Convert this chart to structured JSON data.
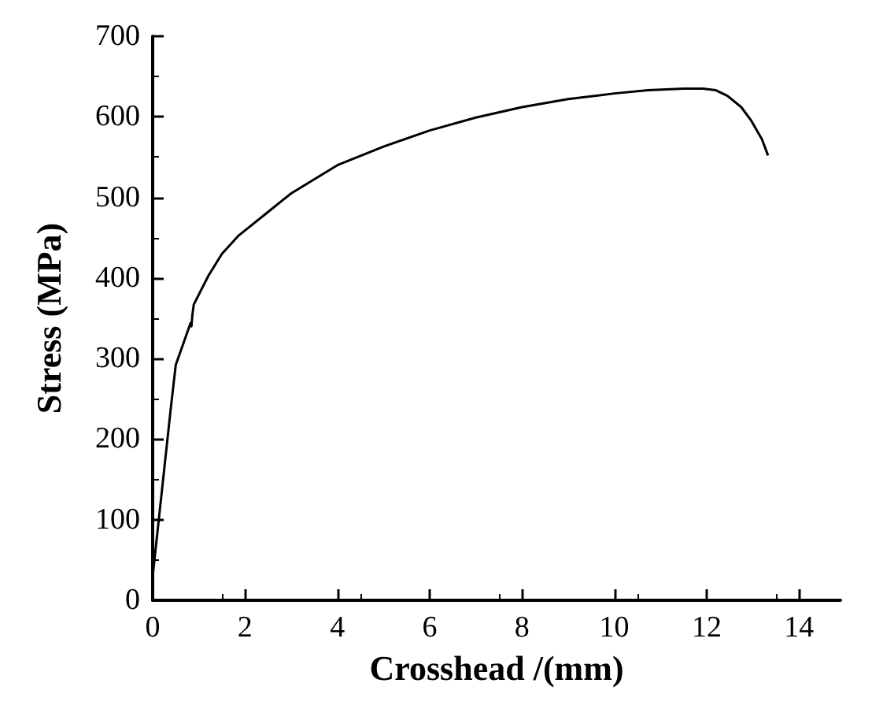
{
  "chart_data": {
    "type": "line",
    "xlabel": "Crosshead /(mm)",
    "ylabel": "Stress (MPa)",
    "xlim": [
      0,
      14.9
    ],
    "xticks": [
      0,
      2,
      4,
      6,
      8,
      10,
      12,
      14
    ],
    "ylim": [
      0,
      700
    ],
    "yticks": [
      0,
      100,
      200,
      300,
      400,
      500,
      600,
      700
    ],
    "grid": false,
    "marker": "none",
    "line_style": "solid",
    "series": [
      {
        "color": "#000000",
        "x": [
          0.01,
          0.39,
          0.5,
          0.82,
          0.84,
          0.86,
          0.89,
          1.21,
          1.5,
          1.85,
          2.5,
          3,
          4,
          5,
          6,
          7,
          8,
          9,
          10,
          10.73,
          11.5,
          11.92,
          12.2,
          12.45,
          12.75,
          12.97,
          13.2,
          13.33
        ],
        "values": [
          35,
          237,
          292,
          344,
          340,
          354,
          367,
          403,
          430,
          452,
          482,
          505,
          540,
          563,
          583,
          599,
          612,
          622,
          629,
          633,
          635,
          635,
          633,
          626,
          612,
          595,
          572,
          552
        ]
      }
    ]
  }
}
